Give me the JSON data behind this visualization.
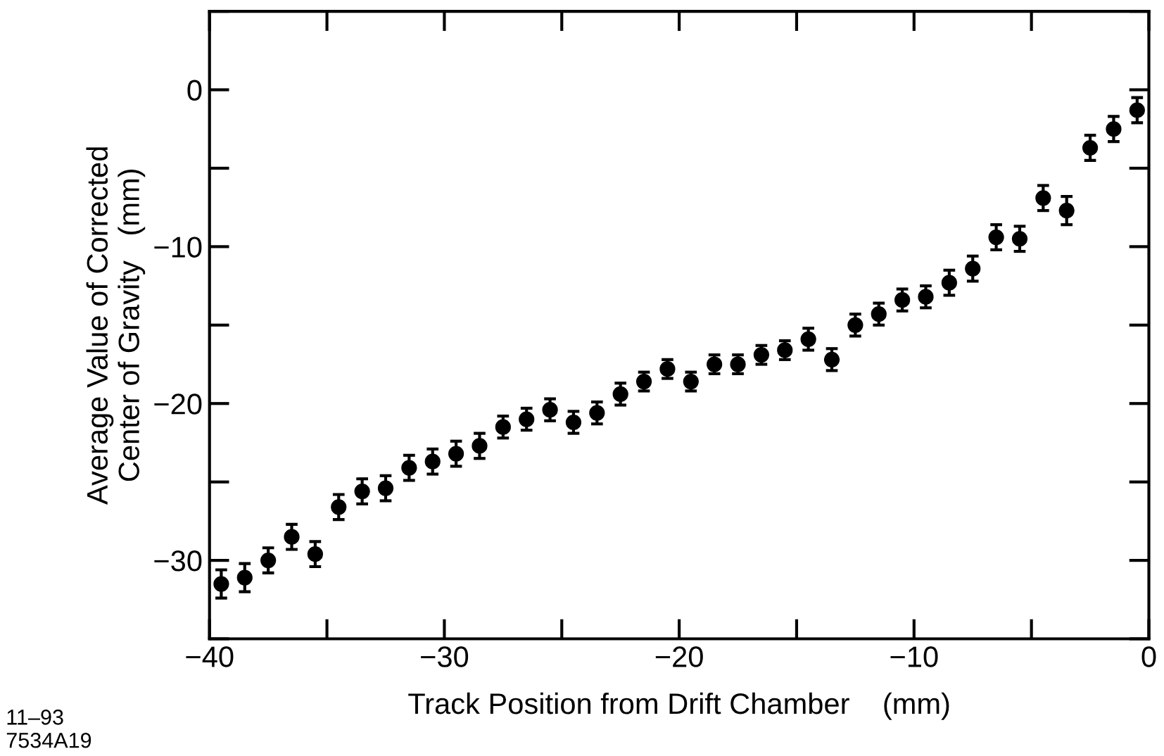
{
  "chart_data": {
    "type": "scatter",
    "xlabel": "Track Position from Drift Chamber    (mm)",
    "ylabel": "Average Value of Corrected\nCenter of Gravity   (mm)",
    "annotations": [
      "11–93\n7534A19"
    ],
    "x": [
      -39.5,
      -38.5,
      -37.5,
      -36.5,
      -35.5,
      -34.5,
      -33.5,
      -32.5,
      -31.5,
      -30.5,
      -29.5,
      -28.5,
      -27.5,
      -26.5,
      -25.5,
      -24.5,
      -23.5,
      -22.5,
      -21.5,
      -20.5,
      -19.5,
      -18.5,
      -17.5,
      -16.5,
      -15.5,
      -14.5,
      -13.5,
      -12.5,
      -11.5,
      -10.5,
      -9.5,
      -8.5,
      -7.5,
      -6.5,
      -5.5,
      -4.5,
      -3.5,
      -2.5,
      -1.5,
      -0.5
    ],
    "series": [
      {
        "color": "#000000",
        "values": [
          -31.5,
          -31.1,
          -30.0,
          -28.5,
          -29.6,
          -26.6,
          -25.6,
          -25.4,
          -24.1,
          -23.7,
          -23.2,
          -22.7,
          -21.5,
          -21.0,
          -20.4,
          -21.2,
          -20.6,
          -19.4,
          -18.6,
          -17.8,
          -18.6,
          -17.5,
          -17.5,
          -16.9,
          -16.6,
          -15.9,
          -17.2,
          -15.0,
          -14.3,
          -13.4,
          -13.2,
          -12.3,
          -11.4,
          -9.4,
          -9.5,
          -6.9,
          -7.7,
          -3.7,
          -2.5,
          -1.3
        ],
        "errors": [
          0.9,
          0.9,
          0.8,
          0.8,
          0.8,
          0.8,
          0.8,
          0.8,
          0.8,
          0.8,
          0.8,
          0.8,
          0.7,
          0.7,
          0.7,
          0.7,
          0.7,
          0.7,
          0.6,
          0.6,
          0.6,
          0.6,
          0.6,
          0.6,
          0.6,
          0.7,
          0.7,
          0.7,
          0.7,
          0.7,
          0.7,
          0.8,
          0.8,
          0.8,
          0.8,
          0.8,
          0.9,
          0.8,
          0.8,
          0.8
        ]
      }
    ],
    "marker": "circle",
    "xlim": [
      -40,
      0
    ],
    "xticks": [
      -40,
      {
        "value": -35,
        "label": null
      },
      -30,
      {
        "value": -25,
        "label": null
      },
      -20,
      {
        "value": -15,
        "label": null
      },
      -10,
      {
        "value": -5,
        "label": null
      },
      0
    ],
    "ylim": [
      -35,
      5
    ],
    "yticks": [
      {
        "value": -35,
        "label": null
      },
      -30,
      {
        "value": -25,
        "label": null
      },
      -20,
      {
        "value": -15,
        "label": null
      },
      -10,
      {
        "value": -5,
        "label": null
      },
      0,
      {
        "value": 5,
        "label": null
      }
    ],
    "grid": false,
    "legend": false
  }
}
